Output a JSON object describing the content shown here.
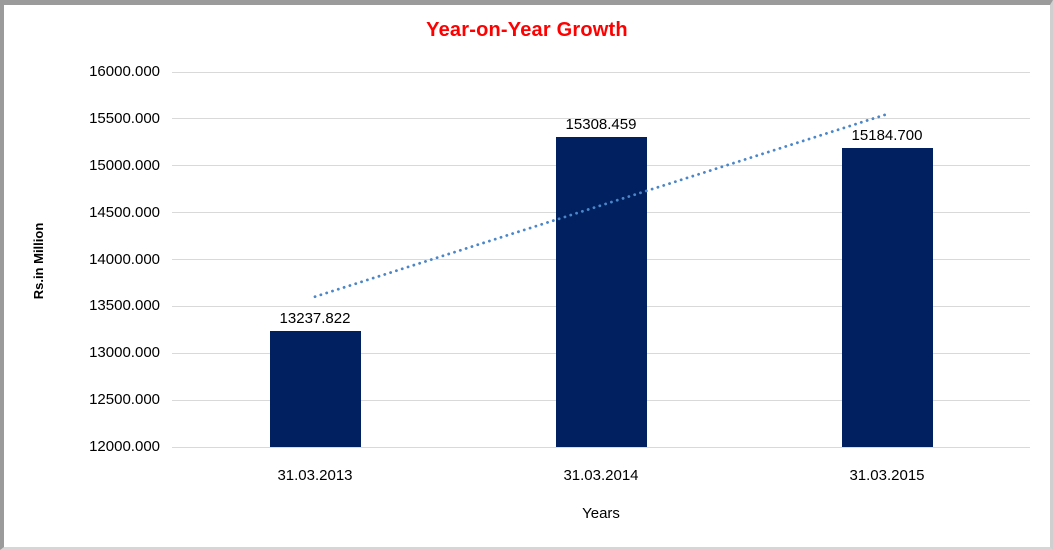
{
  "chart_data": {
    "type": "bar",
    "title": "Year-on-Year Growth",
    "title_color": "#ff0000",
    "xlabel": "Years",
    "ylabel": "Rs.in Million",
    "categories": [
      "31.03.2013",
      "31.03.2014",
      "31.03.2015"
    ],
    "values": [
      13237.822,
      15308.459,
      15184.7
    ],
    "data_labels": [
      "13237.822",
      "15308.459",
      "15184.700"
    ],
    "ylim": [
      12000,
      16000
    ],
    "ytick_step": 500,
    "ytick_labels": [
      "16000.000",
      "15500.000",
      "15000.000",
      "14500.000",
      "14000.000",
      "13500.000",
      "13000.000",
      "12500.000",
      "12000.000"
    ],
    "grid": true,
    "legend": "none",
    "bar_color": "#002060",
    "gridline_color": "#d9d9d9",
    "trendline": {
      "type": "linear",
      "style": "dotted",
      "color": "#4a86c8",
      "start_value": 13603.6,
      "end_value": 15550.4
    }
  }
}
